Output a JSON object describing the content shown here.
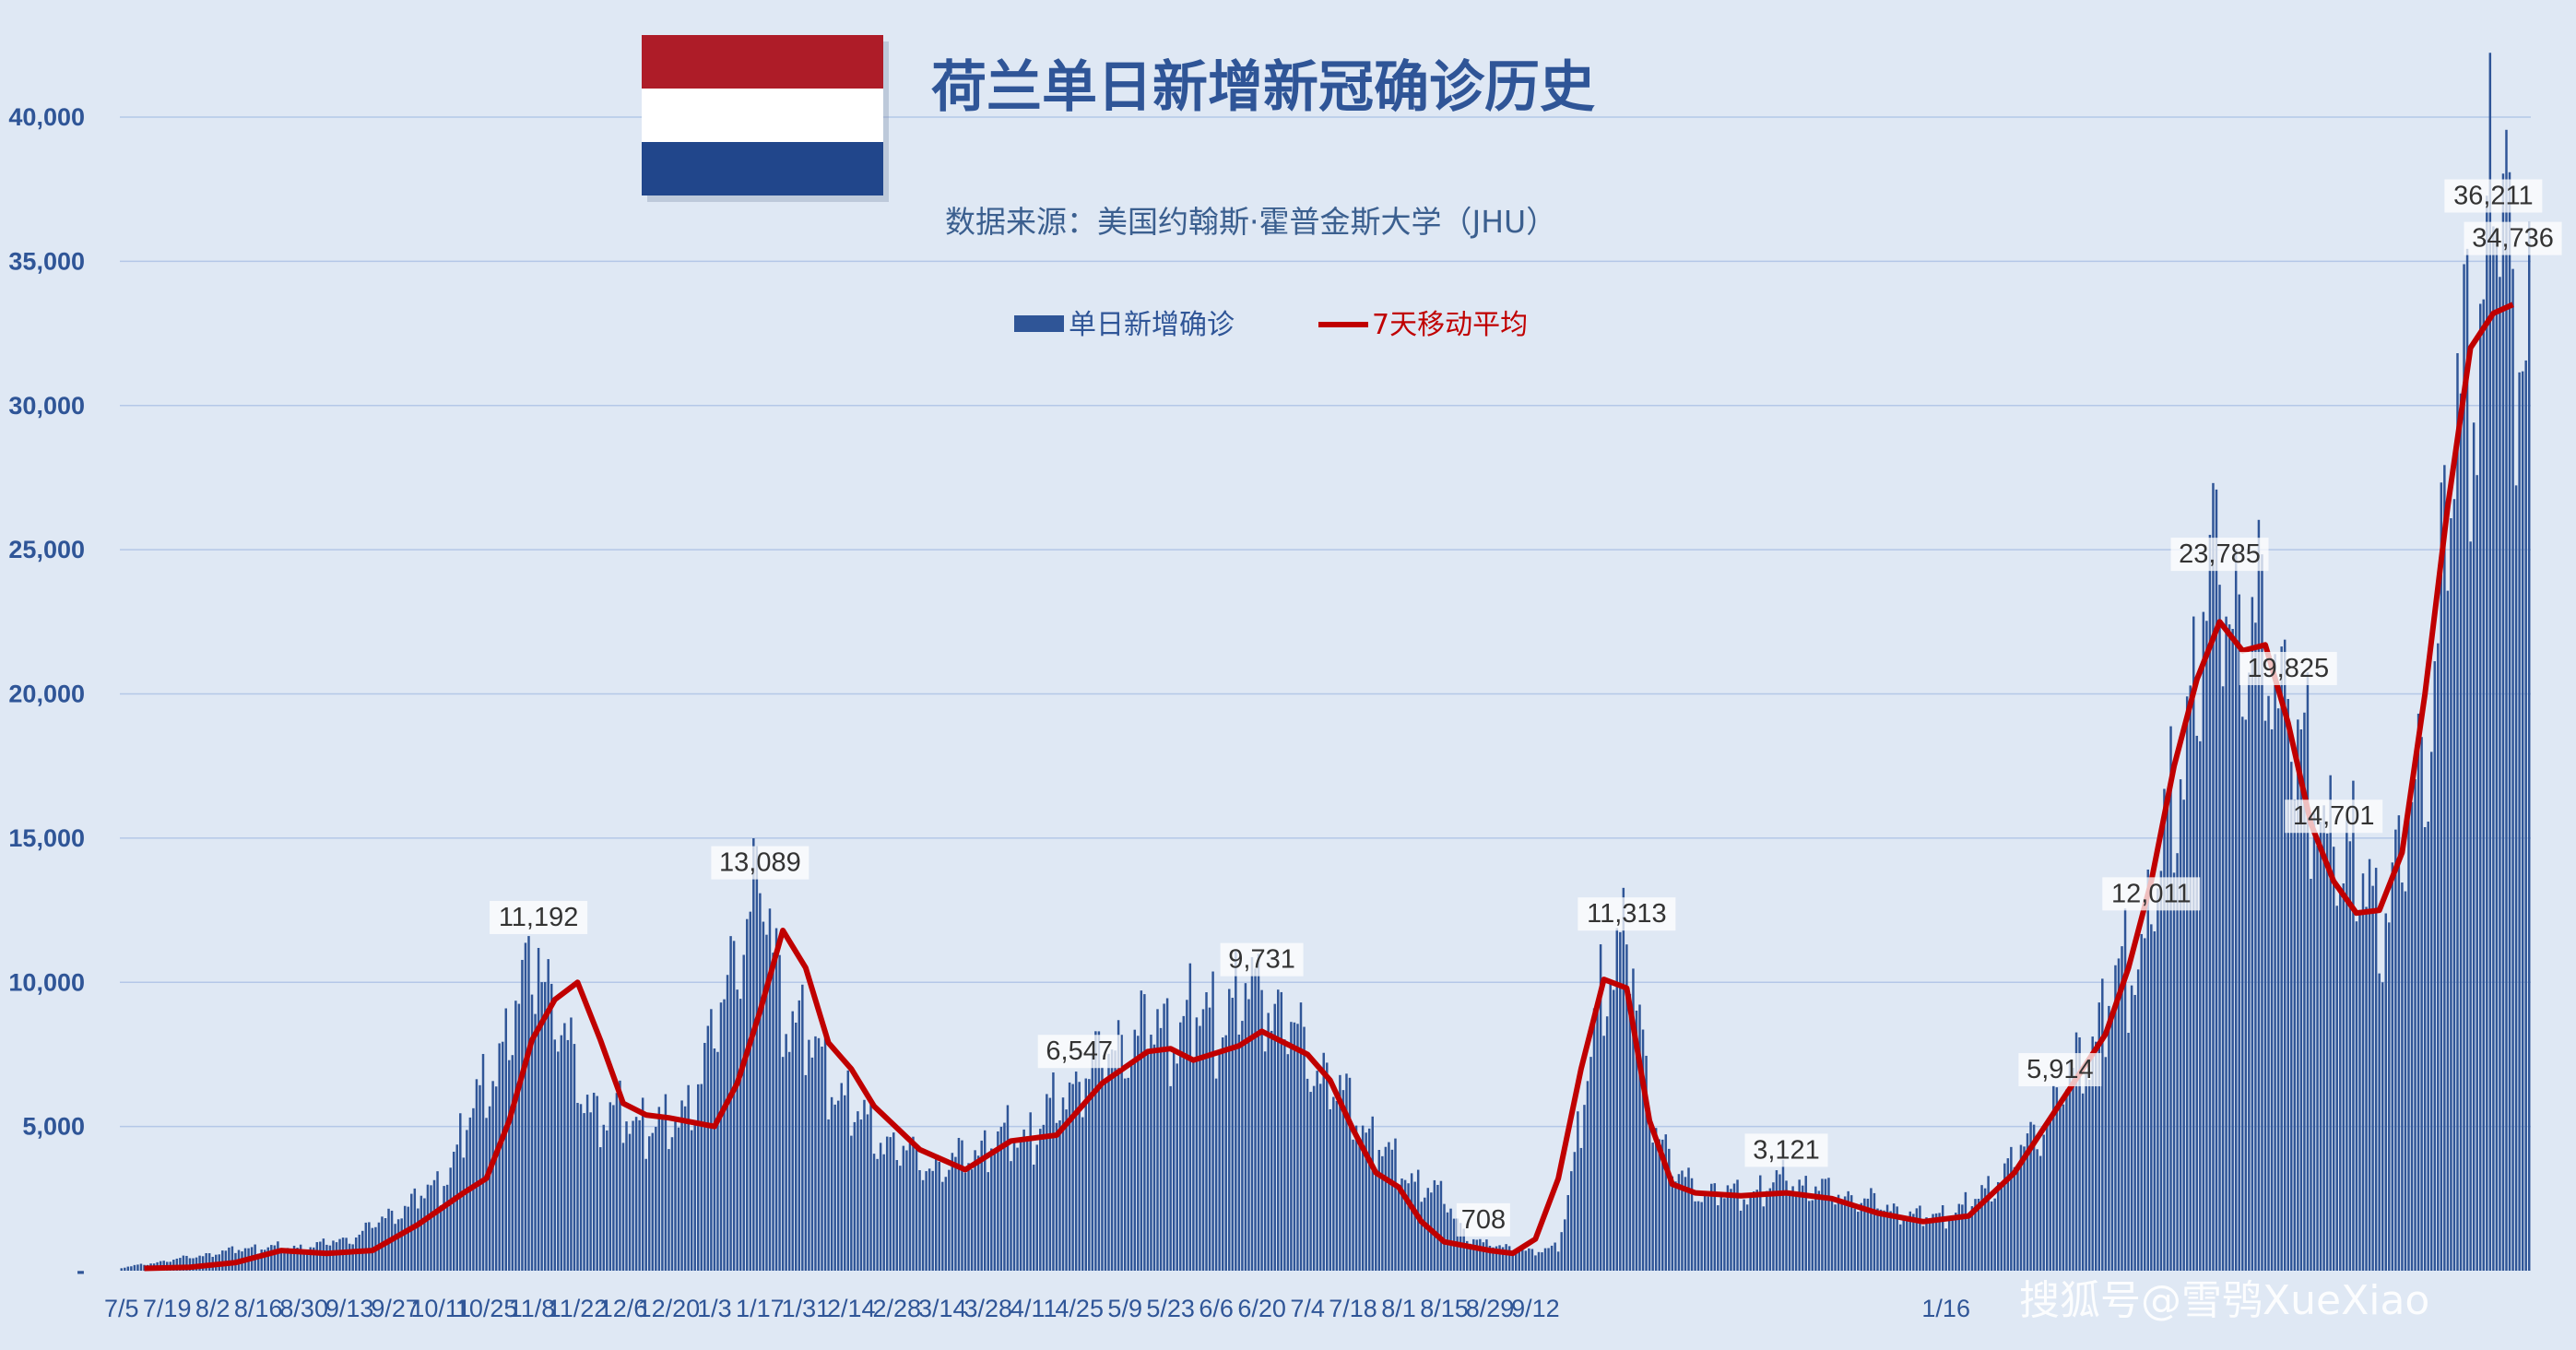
{
  "chart_data": {
    "type": "bar",
    "title": "荷兰单日新增新冠确诊历史",
    "subtitle": "数据来源：美国约翰斯·霍普金斯大学（JHU）",
    "ylim": [
      0,
      42000
    ],
    "yticks": [
      0,
      5000,
      10000,
      15000,
      20000,
      25000,
      30000,
      35000,
      40000
    ],
    "ytick_labels": [
      "-",
      "5,000",
      "10,000",
      "15,000",
      "20,000",
      "25,000",
      "30,000",
      "35,000",
      "40,000"
    ],
    "grid": true,
    "legend_position": "top-center",
    "x_tick_labels": [
      "7/5",
      "7/19",
      "8/2",
      "8/16",
      "8/30",
      "9/13",
      "9/27",
      "10/11",
      "10/25",
      "11/8",
      "11/22",
      "12/6",
      "12/20",
      "1/3",
      "1/17",
      "1/31",
      "2/14",
      "2/28",
      "3/14",
      "3/28",
      "4/11",
      "4/25",
      "5/9",
      "5/23",
      "6/6",
      "6/20",
      "7/4",
      "7/18",
      "8/1",
      "8/15",
      "8/29",
      "9/12",
      "",
      "",
      "",
      "",
      "",
      "",
      "",
      "",
      "1/16"
    ],
    "series": [
      {
        "name": "单日新增确诊",
        "kind": "bar",
        "anchors": [
          [
            0,
            100
          ],
          [
            40,
            800
          ],
          [
            56,
            800
          ],
          [
            70,
            1100
          ],
          [
            84,
            2000
          ],
          [
            98,
            3000
          ],
          [
            112,
            6500
          ],
          [
            120,
            8500
          ],
          [
            128,
            11192
          ],
          [
            133,
            9000
          ],
          [
            140,
            6500
          ],
          [
            147,
            5400
          ],
          [
            161,
            5200
          ],
          [
            168,
            4800
          ],
          [
            175,
            6000
          ],
          [
            182,
            8000
          ],
          [
            189,
            11500
          ],
          [
            196,
            13089
          ],
          [
            203,
            9500
          ],
          [
            210,
            8000
          ],
          [
            217,
            7000
          ],
          [
            224,
            5500
          ],
          [
            238,
            4200
          ],
          [
            252,
            3500
          ],
          [
            266,
            4400
          ],
          [
            280,
            4800
          ],
          [
            294,
            6547
          ],
          [
            308,
            8000
          ],
          [
            322,
            8500
          ],
          [
            336,
            8800
          ],
          [
            350,
            9731
          ],
          [
            364,
            7500
          ],
          [
            378,
            5500
          ],
          [
            392,
            3500
          ],
          [
            406,
            2500
          ],
          [
            413,
            1200
          ],
          [
            420,
            900
          ],
          [
            427,
            800
          ],
          [
            434,
            600
          ],
          [
            441,
            900
          ],
          [
            448,
            5000
          ],
          [
            455,
            10500
          ],
          [
            462,
            11313
          ],
          [
            469,
            6000
          ],
          [
            476,
            3500
          ],
          [
            483,
            2800
          ],
          [
            497,
            2600
          ],
          [
            511,
            3121
          ],
          [
            525,
            2700
          ],
          [
            539,
            2300
          ],
          [
            553,
            1800
          ],
          [
            567,
            2200
          ],
          [
            581,
            3800
          ],
          [
            595,
            5914
          ],
          [
            609,
            9000
          ],
          [
            623,
            12011
          ],
          [
            630,
            16000
          ],
          [
            637,
            21500
          ],
          [
            644,
            23785
          ],
          [
            651,
            22500
          ],
          [
            658,
            21000
          ],
          [
            665,
            19825
          ],
          [
            672,
            16000
          ],
          [
            679,
            14701
          ],
          [
            686,
            13500
          ],
          [
            693,
            12500
          ],
          [
            700,
            14000
          ],
          [
            707,
            18000
          ],
          [
            714,
            26000
          ],
          [
            721,
            32000
          ],
          [
            728,
            36211
          ],
          [
            734,
            34736
          ]
        ],
        "values_note": ""
      },
      {
        "name": "7天移动平均",
        "kind": "line",
        "anchors": [
          [
            7,
            80
          ],
          [
            21,
            120
          ],
          [
            35,
            280
          ],
          [
            49,
            700
          ],
          [
            63,
            600
          ],
          [
            77,
            700
          ],
          [
            91,
            1600
          ],
          [
            105,
            2700
          ],
          [
            112,
            3200
          ],
          [
            119,
            5200
          ],
          [
            126,
            8000
          ],
          [
            133,
            9400
          ],
          [
            140,
            10000
          ],
          [
            147,
            8000
          ],
          [
            154,
            5800
          ],
          [
            161,
            5400
          ],
          [
            168,
            5300
          ],
          [
            182,
            5000
          ],
          [
            189,
            6500
          ],
          [
            196,
            9000
          ],
          [
            203,
            11800
          ],
          [
            210,
            10500
          ],
          [
            217,
            7900
          ],
          [
            224,
            7000
          ],
          [
            231,
            5700
          ],
          [
            245,
            4200
          ],
          [
            259,
            3500
          ],
          [
            273,
            4500
          ],
          [
            287,
            4700
          ],
          [
            301,
            6500
          ],
          [
            315,
            7600
          ],
          [
            322,
            7700
          ],
          [
            329,
            7300
          ],
          [
            343,
            7800
          ],
          [
            350,
            8300
          ],
          [
            357,
            7900
          ],
          [
            364,
            7500
          ],
          [
            371,
            6600
          ],
          [
            378,
            4900
          ],
          [
            385,
            3400
          ],
          [
            392,
            2900
          ],
          [
            399,
            1700
          ],
          [
            406,
            1000
          ],
          [
            420,
            700
          ],
          [
            427,
            600
          ],
          [
            434,
            1100
          ],
          [
            441,
            3200
          ],
          [
            448,
            7000
          ],
          [
            455,
            10100
          ],
          [
            462,
            9800
          ],
          [
            469,
            5200
          ],
          [
            476,
            3000
          ],
          [
            483,
            2700
          ],
          [
            497,
            2600
          ],
          [
            511,
            2700
          ],
          [
            525,
            2500
          ],
          [
            539,
            2000
          ],
          [
            553,
            1700
          ],
          [
            567,
            1900
          ],
          [
            581,
            3400
          ],
          [
            595,
            5800
          ],
          [
            609,
            8200
          ],
          [
            616,
            10500
          ],
          [
            623,
            13500
          ],
          [
            630,
            17500
          ],
          [
            637,
            20500
          ],
          [
            644,
            22500
          ],
          [
            651,
            21500
          ],
          [
            658,
            21700
          ],
          [
            665,
            19000
          ],
          [
            672,
            15500
          ],
          [
            679,
            13500
          ],
          [
            686,
            12400
          ],
          [
            693,
            12500
          ],
          [
            700,
            14500
          ],
          [
            707,
            20000
          ],
          [
            714,
            26500
          ],
          [
            721,
            32000
          ],
          [
            728,
            33200
          ],
          [
            734,
            33500
          ]
        ]
      }
    ],
    "annotations": [
      {
        "label": "11,192",
        "index": 128,
        "value": 11192
      },
      {
        "label": "13,089",
        "index": 196,
        "value": 13089
      },
      {
        "label": "6,547",
        "index": 294,
        "value": 6547
      },
      {
        "label": "9,731",
        "index": 350,
        "value": 9731
      },
      {
        "label": "708",
        "index": 418,
        "value": 708
      },
      {
        "label": "11,313",
        "index": 462,
        "value": 11313
      },
      {
        "label": "3,121",
        "index": 511,
        "value": 3121
      },
      {
        "label": "5,914",
        "index": 595,
        "value": 5914
      },
      {
        "label": "12,011",
        "index": 623,
        "value": 12011
      },
      {
        "label": "23,785",
        "index": 644,
        "value": 23785
      },
      {
        "label": "19,825",
        "index": 665,
        "value": 19825
      },
      {
        "label": "14,701",
        "index": 679,
        "value": 14701
      },
      {
        "label": "36,211",
        "index": 728,
        "value": 36211
      },
      {
        "label": "34,736",
        "index": 734,
        "value": 34736
      }
    ]
  },
  "legend": {
    "bar_label": "单日新增确诊",
    "line_label": "7天移动平均"
  },
  "flag": {
    "name": "netherlands-flag",
    "colors": [
      "#ae1c28",
      "#ffffff",
      "#21468b"
    ]
  },
  "colors": {
    "bars": "#2f5597",
    "line": "#c00000",
    "grid": "#b4c7e7",
    "background": "#dfe8f4"
  },
  "watermark": "搜狐号@雪鸮XueXiao"
}
